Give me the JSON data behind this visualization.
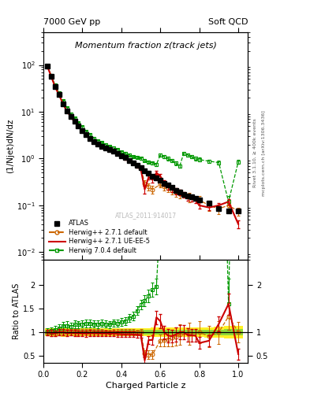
{
  "title_top_left": "7000 GeV pp",
  "title_top_right": "Soft QCD",
  "title_main": "Momentum fraction z(track jets)",
  "ylabel_main": "(1/Njet)dN/dz",
  "ylabel_ratio": "Ratio to ATLAS",
  "xlabel": "Charged Particle z",
  "right_label1": "Rivet 3.1.10, ≥ 400k events",
  "right_label2": "mcplots.cern.ch [arXiv:1306.3436]",
  "watermark": "ATLAS_2011:914017",
  "legend": [
    "ATLAS",
    "Herwig++ 2.7.1 default",
    "Herwig++ 2.7.1 UE-EE-5",
    "Herwig 7.0.4 default"
  ],
  "atlas_x": [
    0.02,
    0.04,
    0.06,
    0.08,
    0.1,
    0.12,
    0.14,
    0.16,
    0.18,
    0.2,
    0.22,
    0.24,
    0.26,
    0.28,
    0.3,
    0.32,
    0.34,
    0.36,
    0.38,
    0.4,
    0.42,
    0.44,
    0.46,
    0.48,
    0.5,
    0.52,
    0.54,
    0.56,
    0.58,
    0.6,
    0.62,
    0.64,
    0.66,
    0.68,
    0.7,
    0.72,
    0.74,
    0.76,
    0.78,
    0.8,
    0.85,
    0.9,
    0.95,
    1.0
  ],
  "atlas_y": [
    95,
    58,
    35,
    23,
    15,
    10.5,
    8.0,
    6.2,
    5.0,
    4.0,
    3.2,
    2.7,
    2.3,
    2.05,
    1.85,
    1.7,
    1.55,
    1.42,
    1.3,
    1.15,
    1.05,
    0.92,
    0.82,
    0.72,
    0.63,
    0.55,
    0.48,
    0.42,
    0.38,
    0.34,
    0.3,
    0.27,
    0.24,
    0.21,
    0.19,
    0.17,
    0.16,
    0.15,
    0.14,
    0.13,
    0.11,
    0.085,
    0.075,
    0.075
  ],
  "atlas_yerr": [
    4,
    2.5,
    1.5,
    1.0,
    0.7,
    0.5,
    0.35,
    0.28,
    0.22,
    0.18,
    0.14,
    0.12,
    0.1,
    0.09,
    0.08,
    0.07,
    0.06,
    0.06,
    0.055,
    0.05,
    0.045,
    0.04,
    0.035,
    0.03,
    0.028,
    0.025,
    0.022,
    0.02,
    0.018,
    0.016,
    0.015,
    0.013,
    0.012,
    0.011,
    0.01,
    0.009,
    0.008,
    0.008,
    0.007,
    0.007,
    0.006,
    0.005,
    0.005,
    0.005
  ],
  "hw271_x": [
    0.02,
    0.04,
    0.06,
    0.08,
    0.1,
    0.12,
    0.14,
    0.16,
    0.18,
    0.2,
    0.22,
    0.24,
    0.26,
    0.28,
    0.3,
    0.32,
    0.34,
    0.36,
    0.38,
    0.4,
    0.42,
    0.44,
    0.46,
    0.48,
    0.5,
    0.52,
    0.54,
    0.56,
    0.6,
    0.62,
    0.64,
    0.66,
    0.68,
    0.7,
    0.75,
    0.8,
    0.85,
    0.9,
    0.95,
    1.0
  ],
  "hw271_y": [
    94,
    57,
    34,
    23,
    15,
    10.5,
    8.0,
    6.2,
    5.0,
    4.0,
    3.2,
    2.7,
    2.3,
    2.05,
    1.85,
    1.7,
    1.55,
    1.42,
    1.3,
    1.15,
    1.05,
    0.92,
    0.82,
    0.72,
    0.63,
    0.3,
    0.25,
    0.22,
    0.28,
    0.25,
    0.23,
    0.21,
    0.19,
    0.18,
    0.15,
    0.13,
    0.1,
    0.085,
    0.1,
    0.075
  ],
  "hw271_yerr": [
    4,
    2.5,
    1.5,
    1.0,
    0.7,
    0.5,
    0.35,
    0.28,
    0.22,
    0.18,
    0.14,
    0.12,
    0.1,
    0.09,
    0.08,
    0.07,
    0.06,
    0.06,
    0.055,
    0.05,
    0.045,
    0.04,
    0.035,
    0.03,
    0.028,
    0.04,
    0.04,
    0.04,
    0.04,
    0.04,
    0.04,
    0.04,
    0.04,
    0.04,
    0.035,
    0.03,
    0.025,
    0.02,
    0.02,
    0.015
  ],
  "hwuee_x": [
    0.02,
    0.04,
    0.06,
    0.08,
    0.1,
    0.12,
    0.14,
    0.16,
    0.18,
    0.2,
    0.22,
    0.24,
    0.26,
    0.28,
    0.3,
    0.32,
    0.34,
    0.36,
    0.38,
    0.4,
    0.42,
    0.44,
    0.46,
    0.48,
    0.5,
    0.52,
    0.54,
    0.56,
    0.58,
    0.6,
    0.62,
    0.64,
    0.66,
    0.68,
    0.7,
    0.72,
    0.74,
    0.76,
    0.78,
    0.8,
    0.85,
    0.9,
    0.95,
    1.0
  ],
  "hwuee_y": [
    94,
    57,
    34,
    23,
    15,
    10.3,
    7.9,
    6.1,
    4.9,
    3.9,
    3.1,
    2.65,
    2.25,
    2.0,
    1.8,
    1.65,
    1.5,
    1.38,
    1.25,
    1.1,
    1.0,
    0.88,
    0.78,
    0.68,
    0.59,
    0.22,
    0.4,
    0.35,
    0.5,
    0.42,
    0.3,
    0.25,
    0.22,
    0.2,
    0.19,
    0.17,
    0.15,
    0.14,
    0.13,
    0.1,
    0.09,
    0.1,
    0.12,
    0.04
  ],
  "hwuee_yerr": [
    4,
    2.5,
    1.5,
    1.0,
    0.7,
    0.5,
    0.35,
    0.28,
    0.22,
    0.18,
    0.14,
    0.12,
    0.1,
    0.09,
    0.08,
    0.07,
    0.06,
    0.06,
    0.055,
    0.05,
    0.045,
    0.04,
    0.035,
    0.03,
    0.028,
    0.04,
    0.04,
    0.04,
    0.05,
    0.05,
    0.04,
    0.035,
    0.03,
    0.03,
    0.028,
    0.025,
    0.022,
    0.02,
    0.018,
    0.015,
    0.012,
    0.012,
    0.015,
    0.008
  ],
  "hw704_x": [
    0.02,
    0.04,
    0.06,
    0.08,
    0.1,
    0.12,
    0.14,
    0.16,
    0.18,
    0.2,
    0.22,
    0.24,
    0.26,
    0.28,
    0.3,
    0.32,
    0.34,
    0.36,
    0.38,
    0.4,
    0.42,
    0.44,
    0.46,
    0.48,
    0.5,
    0.52,
    0.54,
    0.56,
    0.58,
    0.6,
    0.62,
    0.64,
    0.66,
    0.68,
    0.7,
    0.72,
    0.74,
    0.76,
    0.78,
    0.8,
    0.85,
    0.9,
    0.95,
    1.0
  ],
  "hw704_y": [
    96,
    60,
    37,
    25,
    17,
    12,
    9.0,
    7.2,
    5.8,
    4.7,
    3.8,
    3.2,
    2.7,
    2.4,
    2.2,
    2.0,
    1.8,
    1.7,
    1.55,
    1.4,
    1.3,
    1.2,
    1.1,
    1.05,
    1.0,
    0.92,
    0.85,
    0.8,
    0.75,
    1.2,
    1.1,
    1.0,
    0.9,
    0.8,
    0.7,
    1.3,
    1.2,
    1.1,
    1.0,
    0.95,
    0.88,
    0.82,
    0.12,
    0.85
  ],
  "hw704_yerr": [
    5,
    3,
    2,
    1.5,
    1.0,
    0.7,
    0.5,
    0.4,
    0.32,
    0.25,
    0.2,
    0.17,
    0.14,
    0.12,
    0.11,
    0.1,
    0.09,
    0.085,
    0.08,
    0.07,
    0.065,
    0.06,
    0.055,
    0.05,
    0.05,
    0.05,
    0.05,
    0.05,
    0.05,
    0.08,
    0.08,
    0.08,
    0.07,
    0.07,
    0.06,
    0.1,
    0.1,
    0.1,
    0.09,
    0.09,
    0.08,
    0.08,
    0.04,
    0.08
  ],
  "color_atlas": "#000000",
  "color_hw271": "#cc6600",
  "color_hwuee": "#cc0000",
  "color_hw704": "#009900",
  "color_band_yellow": "#ffee00",
  "color_band_green": "#44cc44",
  "ylim_main": [
    0.007,
    500
  ],
  "ylim_ratio": [
    0.35,
    2.55
  ],
  "xlim": [
    0.0,
    1.05
  ]
}
